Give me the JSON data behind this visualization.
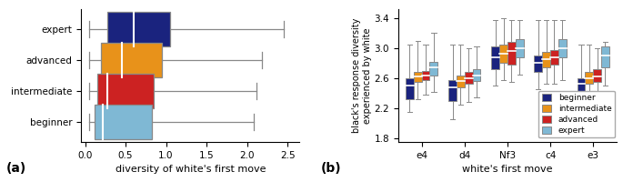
{
  "colors": {
    "beginner": "#1a237e",
    "intermediate": "#e8921a",
    "advanced": "#cc2222",
    "expert": "#7fb8d4"
  },
  "panel_a": {
    "categories": [
      "beginner",
      "intermediate",
      "advanced",
      "expert"
    ],
    "boxes": [
      {
        "q1": 0.28,
        "median": 0.6,
        "q3": 1.05,
        "whisker_low": 0.05,
        "whisker_high": 2.45
      },
      {
        "q1": 0.2,
        "median": 0.45,
        "q3": 0.95,
        "whisker_low": 0.05,
        "whisker_high": 2.18
      },
      {
        "q1": 0.15,
        "median": 0.28,
        "q3": 0.85,
        "whisker_low": 0.05,
        "whisker_high": 2.12
      },
      {
        "q1": 0.12,
        "median": 0.22,
        "q3": 0.82,
        "whisker_low": 0.05,
        "whisker_high": 2.08
      }
    ],
    "xlabel": "diversity of white's first move",
    "xlim": [
      -0.05,
      2.65
    ],
    "xticks": [
      0.0,
      0.5,
      1.0,
      1.5,
      2.0,
      2.5
    ]
  },
  "panel_b": {
    "moves": [
      "e4",
      "d4",
      "Nf3",
      "c4",
      "e3"
    ],
    "xlabel": "white's first move",
    "ylabel": "black's response diversity\nexperienced by white",
    "ylim": [
      1.75,
      3.52
    ],
    "yticks": [
      1.8,
      2.2,
      2.6,
      3.0,
      3.4
    ],
    "data": {
      "e4": {
        "beginner": {
          "q1": 2.32,
          "median": 2.5,
          "q3": 2.6,
          "wl": 2.15,
          "wh": 3.05
        },
        "intermediate": {
          "q1": 2.55,
          "median": 2.62,
          "q3": 2.68,
          "wl": 2.32,
          "wh": 3.1
        },
        "advanced": {
          "q1": 2.58,
          "median": 2.64,
          "q3": 2.7,
          "wl": 2.38,
          "wh": 3.05
        },
        "expert": {
          "q1": 2.64,
          "median": 2.74,
          "q3": 2.82,
          "wl": 2.42,
          "wh": 3.2
        }
      },
      "d4": {
        "beginner": {
          "q1": 2.3,
          "median": 2.48,
          "q3": 2.58,
          "wl": 2.05,
          "wh": 3.05
        },
        "intermediate": {
          "q1": 2.48,
          "median": 2.56,
          "q3": 2.64,
          "wl": 2.25,
          "wh": 3.05
        },
        "advanced": {
          "q1": 2.52,
          "median": 2.6,
          "q3": 2.68,
          "wl": 2.28,
          "wh": 3.0
        },
        "expert": {
          "q1": 2.56,
          "median": 2.64,
          "q3": 2.72,
          "wl": 2.35,
          "wh": 3.02
        }
      },
      "Nf3": {
        "beginner": {
          "q1": 2.72,
          "median": 2.88,
          "q3": 3.02,
          "wl": 2.5,
          "wh": 3.38
        },
        "intermediate": {
          "q1": 2.8,
          "median": 2.92,
          "q3": 3.05,
          "wl": 2.58,
          "wh": 3.4
        },
        "advanced": {
          "q1": 2.78,
          "median": 2.96,
          "q3": 3.08,
          "wl": 2.55,
          "wh": 3.38
        },
        "expert": {
          "q1": 2.88,
          "median": 3.0,
          "q3": 3.12,
          "wl": 2.65,
          "wh": 3.38
        }
      },
      "c4": {
        "beginner": {
          "q1": 2.68,
          "median": 2.8,
          "q3": 2.9,
          "wl": 2.45,
          "wh": 3.38
        },
        "intermediate": {
          "q1": 2.75,
          "median": 2.85,
          "q3": 2.95,
          "wl": 2.52,
          "wh": 3.38
        },
        "advanced": {
          "q1": 2.78,
          "median": 2.88,
          "q3": 2.98,
          "wl": 2.52,
          "wh": 3.38
        },
        "expert": {
          "q1": 2.88,
          "median": 3.0,
          "q3": 3.12,
          "wl": 2.58,
          "wh": 3.38
        }
      },
      "e3": {
        "beginner": {
          "q1": 2.38,
          "median": 2.52,
          "q3": 2.6,
          "wl": 2.12,
          "wh": 3.05
        },
        "intermediate": {
          "q1": 2.52,
          "median": 2.6,
          "q3": 2.68,
          "wl": 2.28,
          "wh": 3.05
        },
        "advanced": {
          "q1": 2.55,
          "median": 2.62,
          "q3": 2.72,
          "wl": 2.32,
          "wh": 3.0
        },
        "expert": {
          "q1": 2.75,
          "median": 2.9,
          "q3": 3.02,
          "wl": 2.5,
          "wh": 3.08
        }
      }
    }
  },
  "label_a": "(a)",
  "label_b": "(b)"
}
